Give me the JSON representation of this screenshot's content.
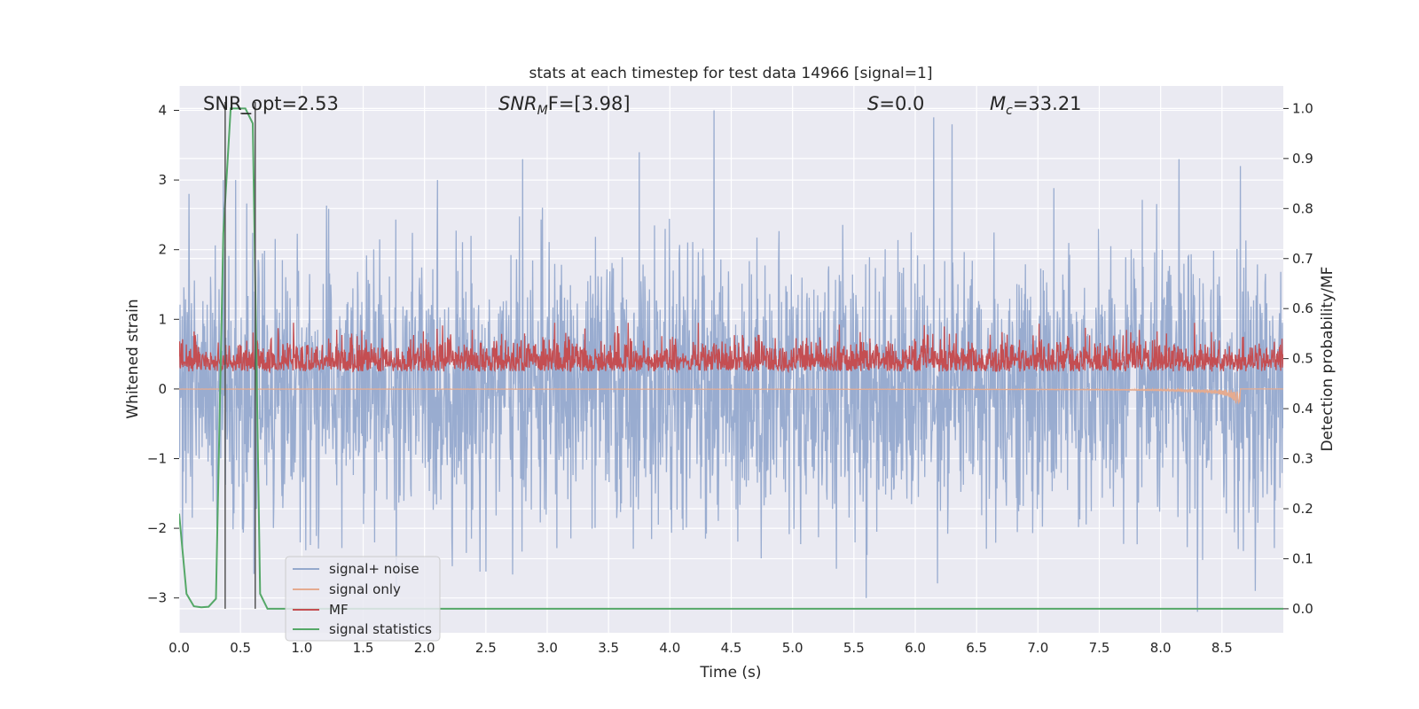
{
  "chart_data": {
    "type": "line",
    "title": "stats at each timestep for test data 14966 [signal=1]",
    "xlabel": "Time (s)",
    "ylabel_left": "Whitened strain",
    "ylabel_right": "Detection probability/MF",
    "xlim": [
      0.0,
      9.0
    ],
    "ylim_left": [
      -3.5,
      4.35
    ],
    "ylim_right": [
      -0.048,
      1.045
    ],
    "x_ticks": [
      "0.0",
      "0.5",
      "1.0",
      "1.5",
      "2.0",
      "2.5",
      "3.0",
      "3.5",
      "4.0",
      "4.5",
      "5.0",
      "5.5",
      "6.0",
      "6.5",
      "7.0",
      "7.5",
      "8.0",
      "8.5"
    ],
    "y_ticks_left": [
      "−3",
      "−2",
      "−1",
      "0",
      "1",
      "2",
      "3",
      "4"
    ],
    "y_ticks_right": [
      "0.0",
      "0.1",
      "0.2",
      "0.3",
      "0.4",
      "0.5",
      "0.6",
      "0.7",
      "0.8",
      "0.9",
      "1.0"
    ],
    "grid": true,
    "legend_position": "lower-left",
    "annotations": {
      "snr_opt": "SNR_opt=2.53",
      "snr_mf_sym": "SNR",
      "snr_mf_sub": "M",
      "snr_mf_rest": "F=[3.98]",
      "s_sym": "S",
      "s_rest": "=0.0",
      "mc_sym": "M",
      "mc_sub": "c",
      "mc_rest": "=33.21"
    },
    "vertical_markers_s": [
      0.375,
      0.62
    ],
    "series": [
      {
        "name": "signal+ noise",
        "color": "#95a9cd",
        "axis": "left",
        "description_range": [
          -3.0,
          4.0
        ],
        "typical_amplitude": 1.2,
        "notable_peaks": [
          [
            0.08,
            2.8
          ],
          [
            2.8,
            3.3
          ],
          [
            3.75,
            3.4
          ],
          [
            4.36,
            4.0
          ],
          [
            6.15,
            3.9
          ],
          [
            6.3,
            3.8
          ],
          [
            8.15,
            3.3
          ],
          [
            8.65,
            3.2
          ],
          [
            8.3,
            -3.2
          ],
          [
            5.6,
            -3.0
          ]
        ]
      },
      {
        "name": "signal only",
        "color": "#e5ab90",
        "axis": "left",
        "chirp_end_s": 8.65,
        "chirp_min": -0.5
      },
      {
        "name": "MF",
        "color": "#c44e52",
        "axis": "left",
        "center": 0.3,
        "range": [
          0.0,
          0.95
        ]
      },
      {
        "name": "signal statistics",
        "color": "#55a868",
        "axis": "right",
        "x": [
          0.0,
          0.06,
          0.12,
          0.18,
          0.24,
          0.3,
          0.36,
          0.42,
          0.48,
          0.54,
          0.6,
          0.66,
          0.72,
          0.78,
          0.84,
          9.0
        ],
        "y": [
          0.19,
          0.03,
          0.005,
          0.003,
          0.004,
          0.02,
          0.75,
          1.0,
          1.0,
          1.0,
          0.97,
          0.03,
          0.0,
          0.0,
          0.0,
          0.0
        ]
      }
    ]
  }
}
